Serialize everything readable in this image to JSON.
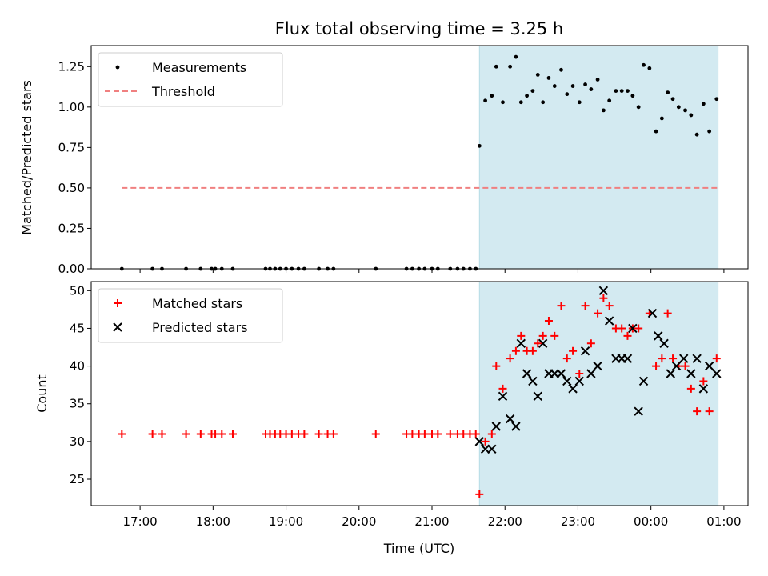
{
  "chart_data": {
    "type": "scatter",
    "title": "Flux total observing time = 3.25 h",
    "xlabel": "Time (UTC)",
    "x_unit": "hours",
    "xlim": [
      16.33,
      25.33
    ],
    "xticks": [
      17,
      18,
      19,
      20,
      21,
      22,
      23,
      24,
      25
    ],
    "xtick_labels": [
      "17:00",
      "18:00",
      "19:00",
      "20:00",
      "21:00",
      "22:00",
      "23:00",
      "00:00",
      "01:00"
    ],
    "shaded_interval": [
      21.65,
      24.92
    ],
    "shade_color": "#d3eaf1",
    "panels": [
      {
        "ylabel": "Matched/Predicted stars",
        "ylim": [
          0,
          1.38
        ],
        "yticks": [
          0,
          0.25,
          0.5,
          0.75,
          1.0,
          1.25
        ],
        "ytick_labels": [
          "0.00",
          "0.25",
          "0.50",
          "0.75",
          "1.00",
          "1.25"
        ],
        "legend_position": "top-left",
        "series": [
          {
            "name": "Measurements",
            "marker": "dot",
            "color": "#000000",
            "points": [
              [
                16.75,
                0
              ],
              [
                17.17,
                0
              ],
              [
                17.3,
                0
              ],
              [
                17.63,
                0
              ],
              [
                17.83,
                0
              ],
              [
                17.98,
                0
              ],
              [
                18.03,
                0
              ],
              [
                18.12,
                0
              ],
              [
                18.27,
                0
              ],
              [
                18.72,
                0
              ],
              [
                18.78,
                0
              ],
              [
                18.85,
                0
              ],
              [
                18.92,
                0
              ],
              [
                19.0,
                0
              ],
              [
                19.08,
                0
              ],
              [
                19.17,
                0
              ],
              [
                19.25,
                0
              ],
              [
                19.45,
                0
              ],
              [
                19.57,
                0
              ],
              [
                19.65,
                0
              ],
              [
                20.23,
                0
              ],
              [
                20.65,
                0
              ],
              [
                20.73,
                0
              ],
              [
                20.82,
                0
              ],
              [
                20.9,
                0
              ],
              [
                21.0,
                0
              ],
              [
                21.08,
                0
              ],
              [
                21.25,
                0
              ],
              [
                21.35,
                0
              ],
              [
                21.43,
                0
              ],
              [
                21.52,
                0
              ],
              [
                21.6,
                0
              ],
              [
                21.65,
                0.76
              ],
              [
                21.73,
                1.04
              ],
              [
                21.82,
                1.07
              ],
              [
                21.88,
                1.25
              ],
              [
                21.97,
                1.03
              ],
              [
                22.07,
                1.25
              ],
              [
                22.15,
                1.31
              ],
              [
                22.22,
                1.03
              ],
              [
                22.3,
                1.07
              ],
              [
                22.38,
                1.1
              ],
              [
                22.45,
                1.2
              ],
              [
                22.52,
                1.03
              ],
              [
                22.6,
                1.18
              ],
              [
                22.68,
                1.13
              ],
              [
                22.77,
                1.23
              ],
              [
                22.85,
                1.08
              ],
              [
                22.93,
                1.13
              ],
              [
                23.02,
                1.03
              ],
              [
                23.1,
                1.14
              ],
              [
                23.18,
                1.11
              ],
              [
                23.27,
                1.17
              ],
              [
                23.35,
                0.98
              ],
              [
                23.43,
                1.04
              ],
              [
                23.52,
                1.1
              ],
              [
                23.6,
                1.1
              ],
              [
                23.68,
                1.1
              ],
              [
                23.75,
                1.07
              ],
              [
                23.83,
                1.0
              ],
              [
                23.9,
                1.26
              ],
              [
                23.98,
                1.24
              ],
              [
                24.07,
                0.85
              ],
              [
                24.15,
                0.93
              ],
              [
                24.23,
                1.09
              ],
              [
                24.3,
                1.05
              ],
              [
                24.38,
                1.0
              ],
              [
                24.47,
                0.98
              ],
              [
                24.55,
                0.95
              ],
              [
                24.63,
                0.83
              ],
              [
                24.72,
                1.02
              ],
              [
                24.8,
                0.85
              ],
              [
                24.9,
                1.05
              ]
            ]
          },
          {
            "name": "Threshold",
            "marker": "dashed-line",
            "color": "#f08080",
            "points": [
              [
                16.75,
                0.5
              ],
              [
                24.92,
                0.5
              ]
            ]
          }
        ]
      },
      {
        "ylabel": "Count",
        "ylim": [
          21.5,
          51.2
        ],
        "yticks": [
          25,
          30,
          35,
          40,
          45,
          50
        ],
        "ytick_labels": [
          "25",
          "30",
          "35",
          "40",
          "45",
          "50"
        ],
        "legend_position": "top-left",
        "series": [
          {
            "name": "Matched stars",
            "marker": "plus",
            "color": "#ff0000",
            "points": [
              [
                16.75,
                31
              ],
              [
                17.17,
                31
              ],
              [
                17.3,
                31
              ],
              [
                17.63,
                31
              ],
              [
                17.83,
                31
              ],
              [
                17.98,
                31
              ],
              [
                18.03,
                31
              ],
              [
                18.12,
                31
              ],
              [
                18.27,
                31
              ],
              [
                18.72,
                31
              ],
              [
                18.78,
                31
              ],
              [
                18.85,
                31
              ],
              [
                18.92,
                31
              ],
              [
                19.0,
                31
              ],
              [
                19.08,
                31
              ],
              [
                19.17,
                31
              ],
              [
                19.25,
                31
              ],
              [
                19.45,
                31
              ],
              [
                19.57,
                31
              ],
              [
                19.65,
                31
              ],
              [
                20.23,
                31
              ],
              [
                20.65,
                31
              ],
              [
                20.73,
                31
              ],
              [
                20.82,
                31
              ],
              [
                20.9,
                31
              ],
              [
                21.0,
                31
              ],
              [
                21.08,
                31
              ],
              [
                21.25,
                31
              ],
              [
                21.35,
                31
              ],
              [
                21.43,
                31
              ],
              [
                21.52,
                31
              ],
              [
                21.6,
                31
              ],
              [
                21.65,
                23
              ],
              [
                21.73,
                30
              ],
              [
                21.82,
                31
              ],
              [
                21.88,
                40
              ],
              [
                21.97,
                37
              ],
              [
                22.07,
                41
              ],
              [
                22.15,
                42
              ],
              [
                22.22,
                44
              ],
              [
                22.3,
                42
              ],
              [
                22.38,
                42
              ],
              [
                22.45,
                43
              ],
              [
                22.52,
                44
              ],
              [
                22.6,
                46
              ],
              [
                22.68,
                44
              ],
              [
                22.77,
                48
              ],
              [
                22.85,
                41
              ],
              [
                22.93,
                42
              ],
              [
                23.02,
                39
              ],
              [
                23.1,
                48
              ],
              [
                23.18,
                43
              ],
              [
                23.27,
                47
              ],
              [
                23.35,
                49
              ],
              [
                23.43,
                48
              ],
              [
                23.52,
                45
              ],
              [
                23.6,
                45
              ],
              [
                23.68,
                44
              ],
              [
                23.75,
                45
              ],
              [
                23.83,
                45
              ],
              [
                23.98,
                47
              ],
              [
                24.07,
                40
              ],
              [
                24.15,
                41
              ],
              [
                24.23,
                47
              ],
              [
                24.3,
                41
              ],
              [
                24.38,
                40
              ],
              [
                24.47,
                40
              ],
              [
                24.55,
                37
              ],
              [
                24.63,
                34
              ],
              [
                24.72,
                38
              ],
              [
                24.8,
                34
              ],
              [
                24.9,
                41
              ]
            ]
          },
          {
            "name": "Predicted stars",
            "marker": "x",
            "color": "#000000",
            "points": [
              [
                21.65,
                30
              ],
              [
                21.73,
                29
              ],
              [
                21.82,
                29
              ],
              [
                21.88,
                32
              ],
              [
                21.97,
                36
              ],
              [
                22.07,
                33
              ],
              [
                22.15,
                32
              ],
              [
                22.22,
                43
              ],
              [
                22.3,
                39
              ],
              [
                22.38,
                38
              ],
              [
                22.45,
                36
              ],
              [
                22.52,
                43
              ],
              [
                22.6,
                39
              ],
              [
                22.68,
                39
              ],
              [
                22.77,
                39
              ],
              [
                22.85,
                38
              ],
              [
                22.93,
                37
              ],
              [
                23.02,
                38
              ],
              [
                23.1,
                42
              ],
              [
                23.18,
                39
              ],
              [
                23.27,
                40
              ],
              [
                23.35,
                50
              ],
              [
                23.43,
                46
              ],
              [
                23.52,
                41
              ],
              [
                23.6,
                41
              ],
              [
                23.68,
                41
              ],
              [
                23.75,
                45
              ],
              [
                23.83,
                34
              ],
              [
                23.9,
                38
              ],
              [
                24.02,
                47
              ],
              [
                24.1,
                44
              ],
              [
                24.18,
                43
              ],
              [
                24.27,
                39
              ],
              [
                24.35,
                40
              ],
              [
                24.45,
                41
              ],
              [
                24.55,
                39
              ],
              [
                24.63,
                41
              ],
              [
                24.72,
                37
              ],
              [
                24.8,
                40
              ],
              [
                24.9,
                39
              ]
            ]
          }
        ]
      }
    ]
  }
}
